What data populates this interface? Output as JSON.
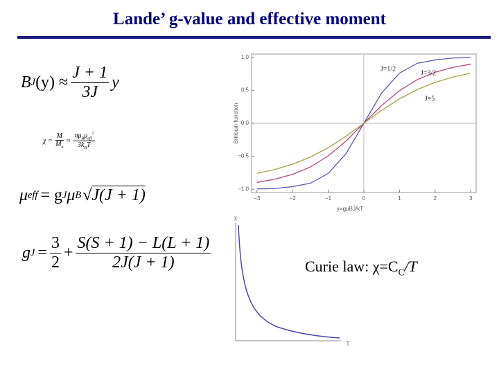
{
  "title": "Lande’ g-value and effective moment",
  "formulas": {
    "f1": {
      "b": "B",
      "b_sub": "J",
      "arg": "(y) ≈",
      "num": "J + 1",
      "den": "3J",
      "y": "y"
    },
    "f2": {
      "lhs": "χ =",
      "num1": "M",
      "den1": "M",
      "den1_sub": "a",
      "approx": "≈",
      "num2": "nμ",
      "num2_sub": "B",
      "num2b": "μ",
      "num2b_sub": "eff",
      "num2b_sup": "2",
      "den2": "3k",
      "den2_sub": "B",
      "den2b": "T"
    },
    "f3": {
      "mu": "μ",
      "mu_sub": "eff",
      "eq": "= g",
      "g_sub": "J",
      "mu2": "μ",
      "mu2_sub": "B",
      "root": "J(J + 1)"
    },
    "f4": {
      "g": "g",
      "g_sub": "J",
      "eq": "=",
      "n1": "3",
      "d1": "2",
      "plus": "+",
      "n2": "S(S + 1) − L(L + 1)",
      "d2": "2J(J + 1)"
    }
  },
  "curie": {
    "text": "Curie law: χ=C",
    "sub": "C",
    "rest": "/T",
    "ylabel": "χ",
    "xlabel": "T"
  },
  "chart_data": {
    "type": "line",
    "xlabel": "y=gμBJ/kT",
    "ylabel": "Brillouin function",
    "x": [
      -3,
      -2.5,
      -2,
      -1.5,
      -1,
      -0.5,
      0,
      0.5,
      1,
      1.5,
      2,
      2.5,
      3
    ],
    "series": [
      {
        "name": "J=1/2",
        "color": "#5a5ab4",
        "values": [
          -0.995,
          -0.99,
          -0.96,
          -0.91,
          -0.76,
          -0.46,
          0,
          0.46,
          0.76,
          0.91,
          0.96,
          0.99,
          0.995
        ]
      },
      {
        "name": "J=3/2",
        "color": "#b4467e",
        "values": [
          -0.897,
          -0.848,
          -0.774,
          -0.662,
          -0.495,
          -0.27,
          0,
          0.27,
          0.495,
          0.662,
          0.774,
          0.848,
          0.897
        ]
      },
      {
        "name": "J=5",
        "color": "#a8a040",
        "values": [
          -0.76,
          -0.701,
          -0.621,
          -0.512,
          -0.371,
          -0.196,
          0,
          0.196,
          0.371,
          0.512,
          0.621,
          0.701,
          0.76
        ]
      }
    ],
    "xlim": [
      -3.15,
      3.15
    ],
    "ylim": [
      -1.05,
      1.05
    ],
    "xticks": [
      {
        "value": -3,
        "label": "−3"
      },
      {
        "value": -2,
        "label": "−2"
      },
      {
        "value": -1,
        "label": "−1"
      },
      0,
      1,
      2,
      3
    ],
    "yticks": [
      {
        "value": -1,
        "label": "−1.0"
      },
      {
        "value": -0.5,
        "label": "−0.5"
      },
      {
        "value": 0,
        "label": "0.0"
      },
      0.5,
      {
        "value": 1,
        "label": "1.0"
      }
    ]
  }
}
